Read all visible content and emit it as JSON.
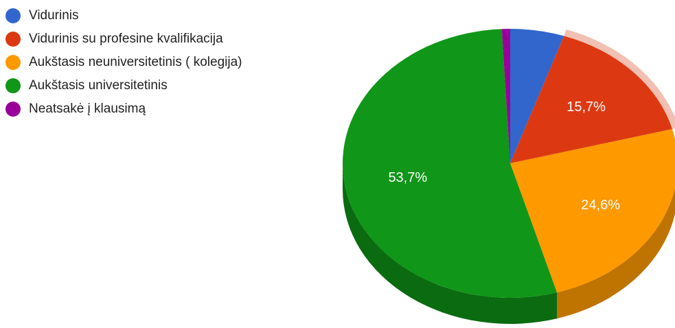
{
  "chart_data": {
    "type": "pie",
    "categories": [
      "Vidurinis",
      "Vidurinis su profesine kvalifikacija",
      "Aukštasis neuniversitetinis ( kolegija)",
      "Aukštasis universitetinis",
      "Neatsakė į klausimą"
    ],
    "values": [
      5.2,
      15.7,
      24.6,
      53.7,
      0.8
    ],
    "data_labels": [
      "",
      "15,7%",
      "24,6%",
      "53,7%",
      ""
    ],
    "colors": [
      "#3366cc",
      "#dc3912",
      "#ff9900",
      "#109618",
      "#990099"
    ],
    "side_colors": [
      "#254b96",
      "#a12a0d",
      "#bf7300",
      "#0b6b11",
      "#6d006d"
    ],
    "highlight_color": "#f2c0b2",
    "legend_position": "left",
    "three_d": true,
    "start_angle_deg": 0
  }
}
